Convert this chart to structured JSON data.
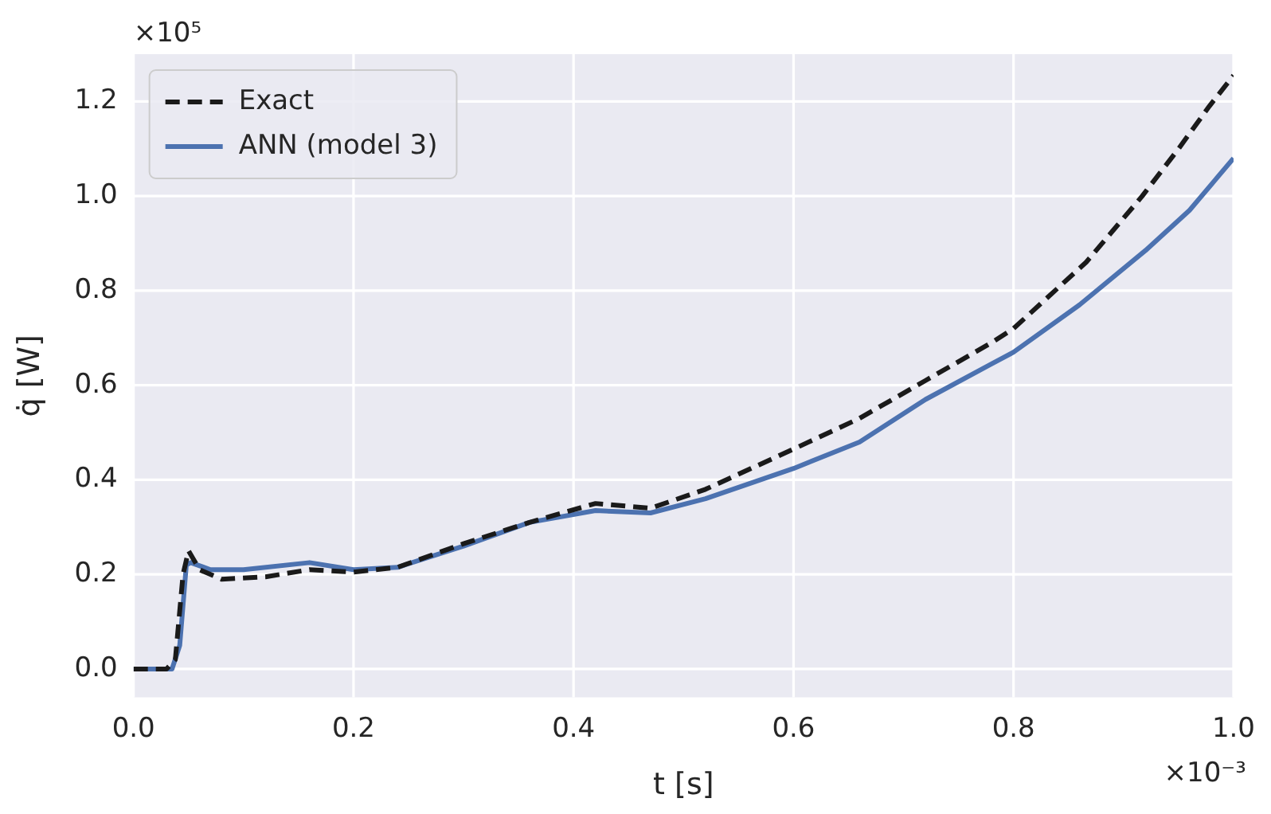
{
  "chart_data": {
    "type": "line",
    "xlabel": "t [s]",
    "ylabel": "q̇ [W]",
    "annotations": [
      "×10⁵",
      "×10⁻³"
    ],
    "xlim": [
      0,
      1
    ],
    "ylim": [
      -0.06,
      1.3
    ],
    "xticks": [
      {
        "value": 0,
        "label": "0.0"
      },
      {
        "value": 0.2,
        "label": "0.2"
      },
      {
        "value": 0.4,
        "label": "0.4"
      },
      {
        "value": 0.6,
        "label": "0.6"
      },
      {
        "value": 0.8,
        "label": "0.8"
      },
      {
        "value": 1,
        "label": "1.0"
      }
    ],
    "yticks": [
      {
        "value": 0,
        "label": "0.0"
      },
      {
        "value": 0.2,
        "label": "0.2"
      },
      {
        "value": 0.4,
        "label": "0.4"
      },
      {
        "value": 0.6,
        "label": "0.6"
      },
      {
        "value": 0.8,
        "label": "0.8"
      },
      {
        "value": 1,
        "label": "1.0"
      },
      {
        "value": 1.2,
        "label": "1.2"
      }
    ],
    "grid": true,
    "legend": "top left",
    "marker": "none",
    "series": [
      {
        "name": "Exact",
        "color": "#1a1a1a",
        "line_style": "dashed",
        "x": [
          0,
          0.03,
          0.038,
          0.045,
          0.05,
          0.06,
          0.08,
          0.12,
          0.16,
          0.2,
          0.24,
          0.3,
          0.36,
          0.42,
          0.47,
          0.52,
          0.6,
          0.66,
          0.72,
          0.78,
          0.8,
          0.866,
          0.917,
          0.95,
          0.978,
          1.0
        ],
        "values": [
          0,
          0,
          0.02,
          0.2,
          0.25,
          0.21,
          0.19,
          0.195,
          0.21,
          0.205,
          0.215,
          0.265,
          0.31,
          0.35,
          0.34,
          0.38,
          0.465,
          0.53,
          0.61,
          0.69,
          0.72,
          0.86,
          1.0,
          1.1,
          1.19,
          1.255
        ]
      },
      {
        "name": "ANN (model 3)",
        "color": "#4c72b0",
        "line_style": "solid",
        "x": [
          0,
          0.035,
          0.042,
          0.048,
          0.052,
          0.07,
          0.1,
          0.16,
          0.2,
          0.24,
          0.3,
          0.36,
          0.42,
          0.47,
          0.52,
          0.6,
          0.66,
          0.72,
          0.78,
          0.8,
          0.86,
          0.92,
          0.96,
          1.0
        ],
        "values": [
          0,
          0,
          0.05,
          0.22,
          0.225,
          0.21,
          0.21,
          0.225,
          0.21,
          0.215,
          0.26,
          0.31,
          0.335,
          0.33,
          0.36,
          0.424,
          0.48,
          0.57,
          0.645,
          0.67,
          0.77,
          0.885,
          0.97,
          1.08
        ]
      }
    ]
  }
}
